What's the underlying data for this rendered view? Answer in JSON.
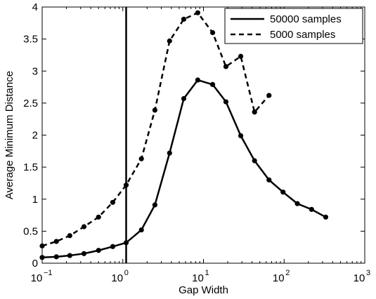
{
  "chart_data": {
    "type": "line",
    "title": "",
    "xlabel": "Gap Width",
    "ylabel": "Average Minimum Distance",
    "xscale": "log",
    "xlim": [
      0.1,
      1000
    ],
    "ylim": [
      0,
      4
    ],
    "grid": false,
    "legend_position": "top-right",
    "x_tick_labels": [
      {
        "base": "10",
        "exp": "−1",
        "value": 0.1
      },
      {
        "base": "10",
        "exp": "0",
        "value": 1
      },
      {
        "base": "10",
        "exp": "1",
        "value": 10
      },
      {
        "base": "10",
        "exp": "2",
        "value": 100
      },
      {
        "base": "10",
        "exp": "3",
        "value": 1000
      }
    ],
    "y_tick_labels": [
      "0",
      "0.5",
      "1",
      "1.5",
      "2",
      "2.5",
      "3",
      "3.5",
      "4"
    ],
    "y_ticks": [
      0,
      0.5,
      1,
      1.5,
      2,
      2.5,
      3,
      3.5,
      4
    ],
    "vertical_line_x": 1.1,
    "series": [
      {
        "name": "50000 samples",
        "style": "solid",
        "color": "#000000",
        "x": [
          0.1,
          0.15,
          0.22,
          0.33,
          0.5,
          0.75,
          1.1,
          1.7,
          2.5,
          3.8,
          5.7,
          8.5,
          13,
          19,
          29,
          43,
          65,
          97,
          146,
          219,
          328
        ],
        "y": [
          0.09,
          0.1,
          0.12,
          0.15,
          0.2,
          0.26,
          0.32,
          0.52,
          0.91,
          1.72,
          2.57,
          2.86,
          2.79,
          2.52,
          1.99,
          1.6,
          1.3,
          1.11,
          0.93,
          0.84,
          0.72
        ]
      },
      {
        "name": "5000 samples",
        "style": "dashed",
        "color": "#000000",
        "x": [
          0.1,
          0.15,
          0.22,
          0.33,
          0.5,
          0.75,
          1.1,
          1.7,
          2.5,
          3.8,
          5.7,
          8.5,
          13,
          19,
          29,
          43,
          65
        ],
        "y": [
          0.27,
          0.34,
          0.43,
          0.57,
          0.72,
          0.95,
          1.22,
          1.63,
          2.39,
          3.47,
          3.81,
          3.91,
          3.6,
          3.07,
          3.23,
          2.36,
          2.62
        ]
      }
    ]
  }
}
